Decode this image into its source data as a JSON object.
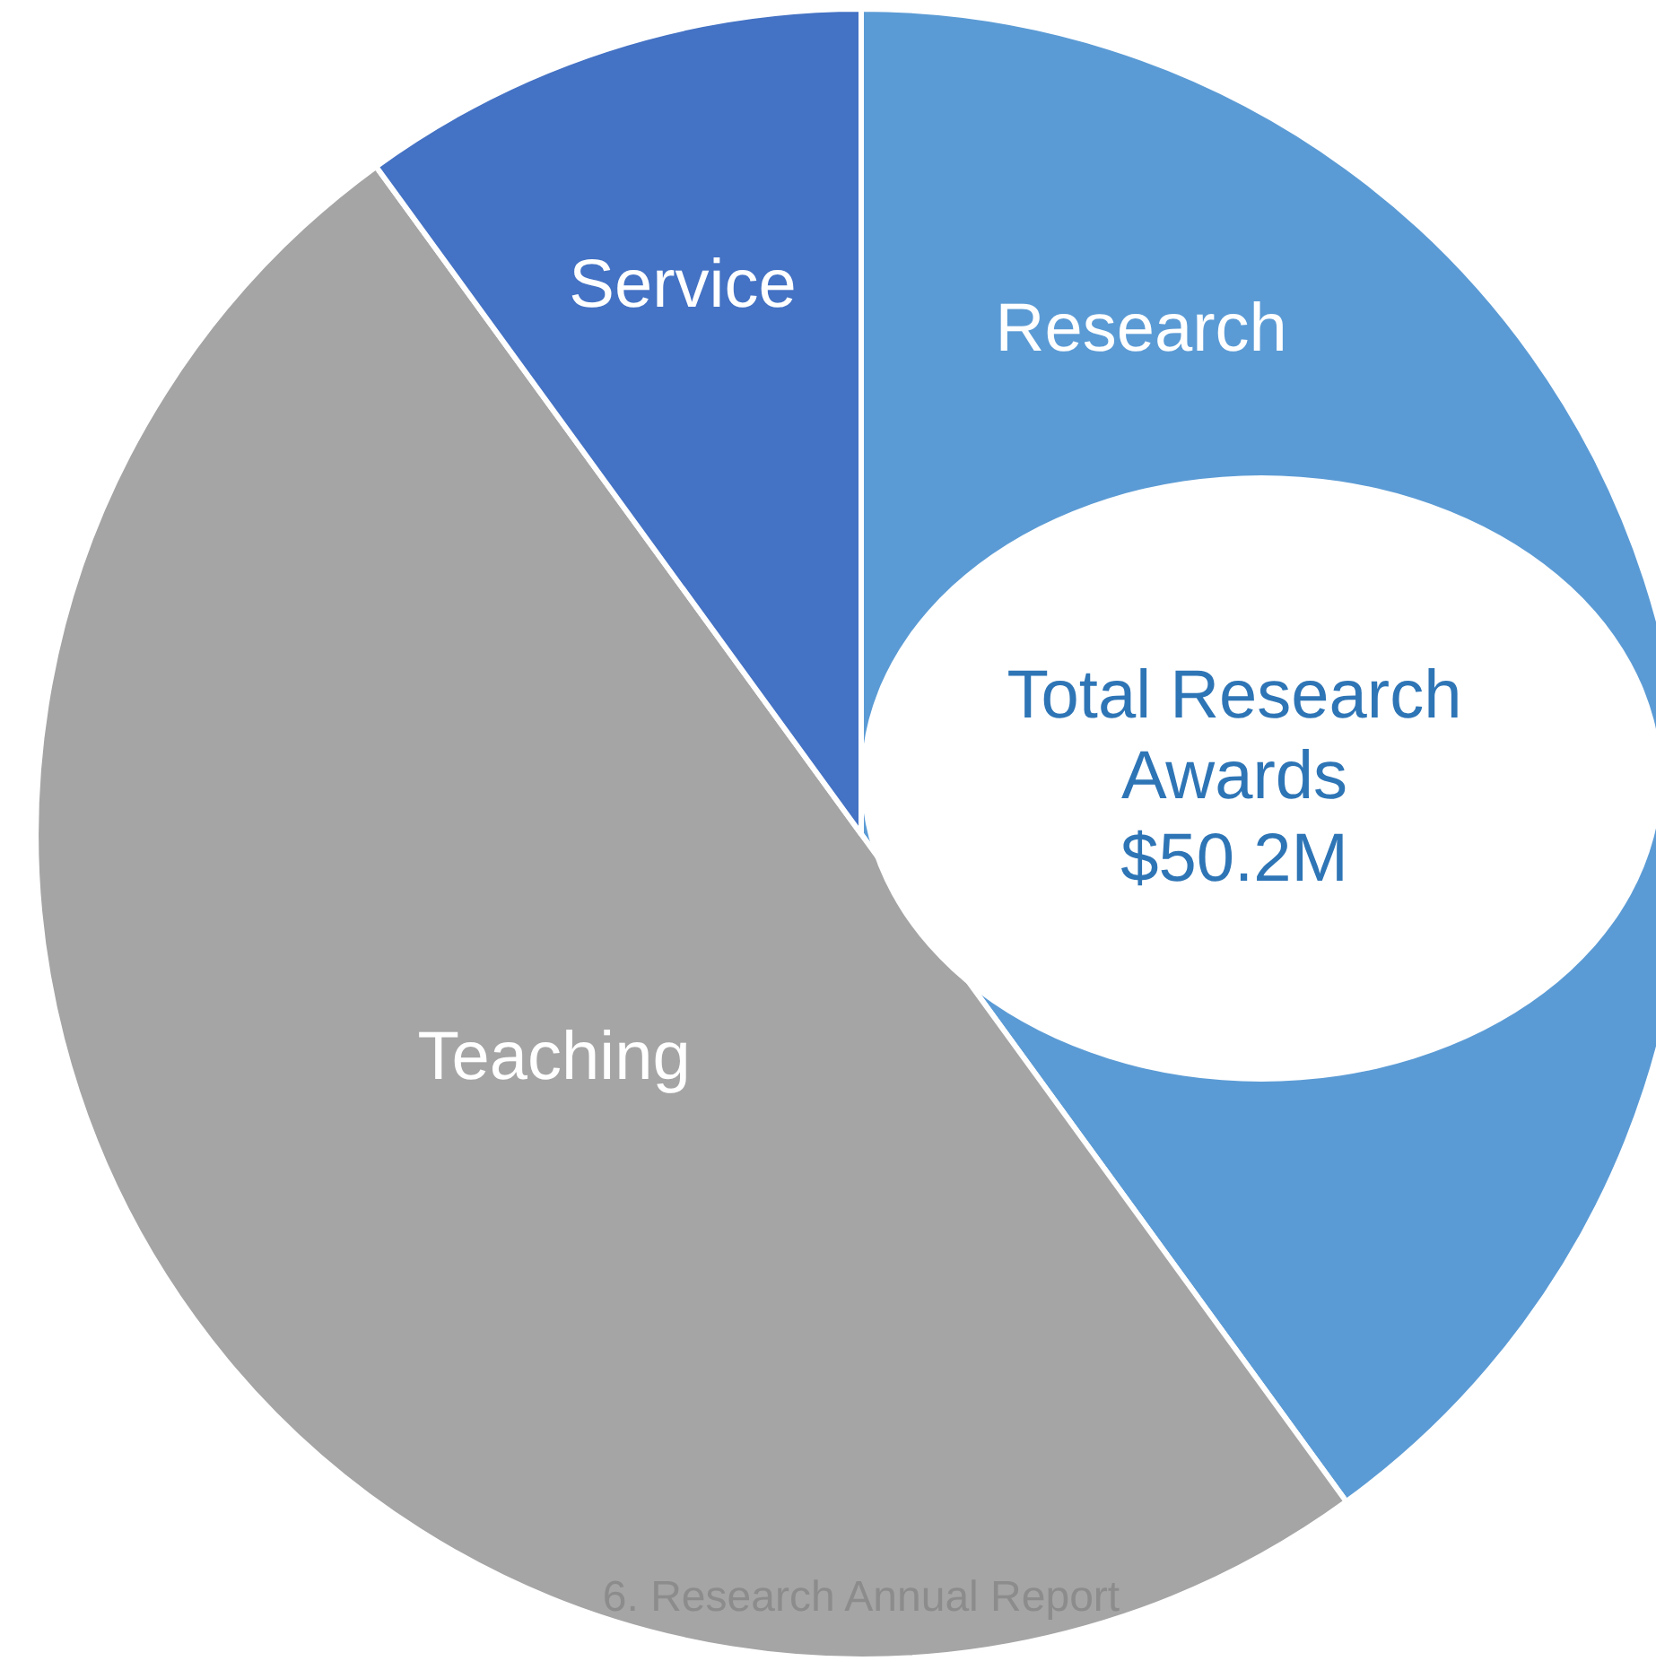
{
  "chart_data": {
    "type": "pie",
    "categories": [
      "Research",
      "Teaching",
      "Service"
    ],
    "values": [
      40,
      50,
      10
    ],
    "colors": [
      "#5b9bd5",
      "#a5a5a5",
      "#4472c4"
    ],
    "legend": false,
    "annotations": [
      "Total Research\nAwards\n$50.2M",
      "6. Research Annual Report"
    ]
  }
}
